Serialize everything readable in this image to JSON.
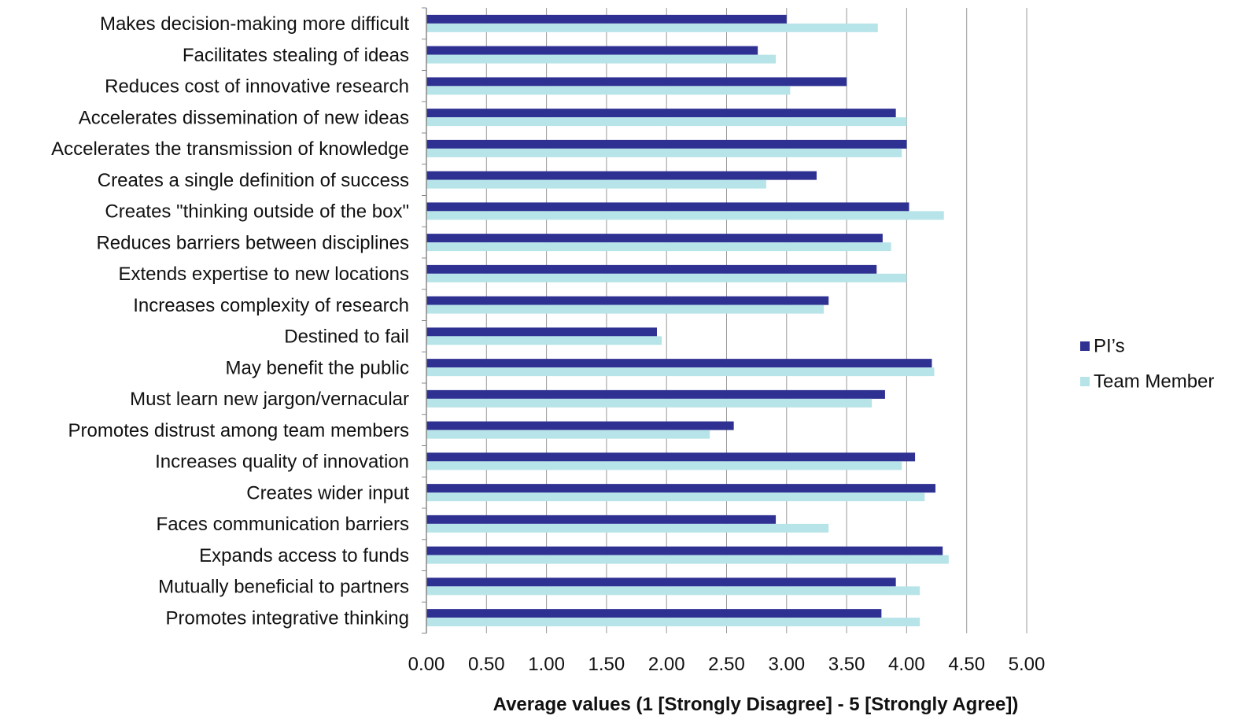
{
  "chart_data": {
    "type": "bar",
    "orientation": "horizontal",
    "categories": [
      "Makes decision-making more difficult",
      "Facilitates stealing of ideas",
      "Reduces cost of innovative research",
      "Accelerates dissemination of new ideas",
      "Accelerates the transmission of knowledge",
      "Creates a single definition of success",
      "Creates \"thinking outside of the box\"",
      "Reduces barriers between disciplines",
      "Extends expertise to new locations",
      "Increases complexity of research",
      "Destined to fail",
      "May benefit the public",
      "Must learn new jargon/vernacular",
      "Promotes distrust among team members",
      "Increases quality of innovation",
      "Creates wider input",
      "Faces communication barriers",
      "Expands access to funds",
      "Mutually beneficial to partners",
      "Promotes integrative thinking"
    ],
    "series": [
      {
        "name": "PI’s",
        "color": "#2e3192",
        "values": [
          3.0,
          2.76,
          3.5,
          3.91,
          4.0,
          3.25,
          4.02,
          3.8,
          3.75,
          3.35,
          1.92,
          4.21,
          3.82,
          2.56,
          4.07,
          4.24,
          2.91,
          4.3,
          3.91,
          3.79
        ]
      },
      {
        "name": "Team Member",
        "color": "#b7e4e8",
        "values": [
          3.76,
          2.91,
          3.03,
          4.0,
          3.96,
          2.83,
          4.31,
          3.87,
          4.0,
          3.31,
          1.96,
          4.23,
          3.71,
          2.36,
          3.96,
          4.15,
          3.35,
          4.35,
          4.11,
          4.11
        ]
      }
    ],
    "xlim": [
      0,
      5
    ],
    "xticks": [
      "0.00",
      "0.50",
      "1.00",
      "1.50",
      "2.00",
      "2.50",
      "3.00",
      "3.50",
      "4.00",
      "4.50",
      "5.00"
    ],
    "xlabel": "Average values (1 [Strongly Disagree] - 5 [Strongly Agree])",
    "ylabel": "",
    "title": "",
    "grid": true,
    "legend_position": "right"
  }
}
